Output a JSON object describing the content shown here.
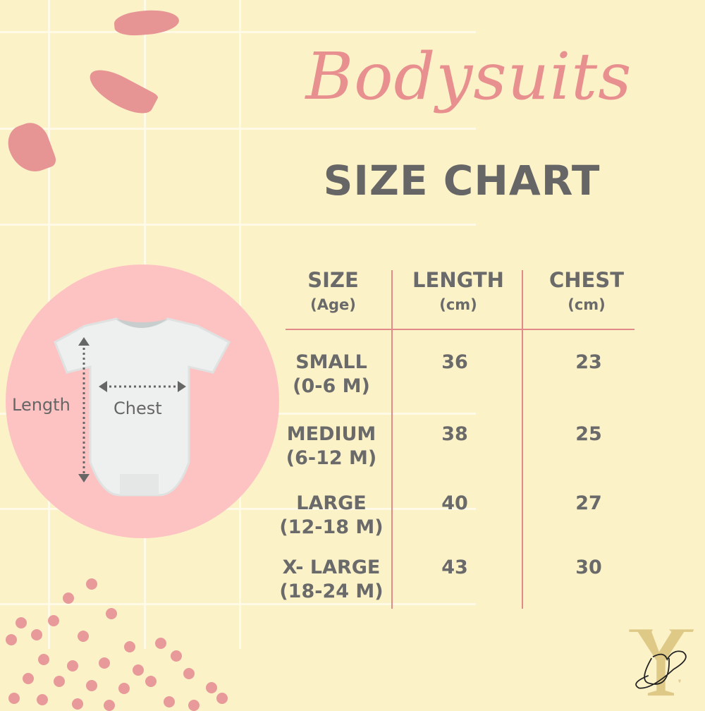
{
  "title": "Bodysuits",
  "subtitle": "SIZE CHART",
  "diagram": {
    "length_label": "Length",
    "chest_label": "Chest"
  },
  "table": {
    "headers": [
      {
        "main": "SIZE",
        "sub": "(Age)"
      },
      {
        "main": "LENGTH",
        "sub": "(cm)"
      },
      {
        "main": "CHEST",
        "sub": "(cm)"
      }
    ],
    "rows": [
      {
        "size": "SMALL",
        "age": "(0-6 M)",
        "length": "36",
        "chest": "23"
      },
      {
        "size": "MEDIUM",
        "age": "(6-12 M)",
        "length": "38",
        "chest": "25"
      },
      {
        "size": "LARGE",
        "age": "(12-18 M)",
        "length": "40",
        "chest": "27"
      },
      {
        "size": "X- LARGE",
        "age": "(18-24 M)",
        "length": "43",
        "chest": "30"
      }
    ]
  },
  "logo": {
    "text": "YD"
  },
  "colors": {
    "background": "#fcf2c8",
    "accent": "#e8908f",
    "text": "#666666",
    "circle": "#fdc3c3"
  }
}
